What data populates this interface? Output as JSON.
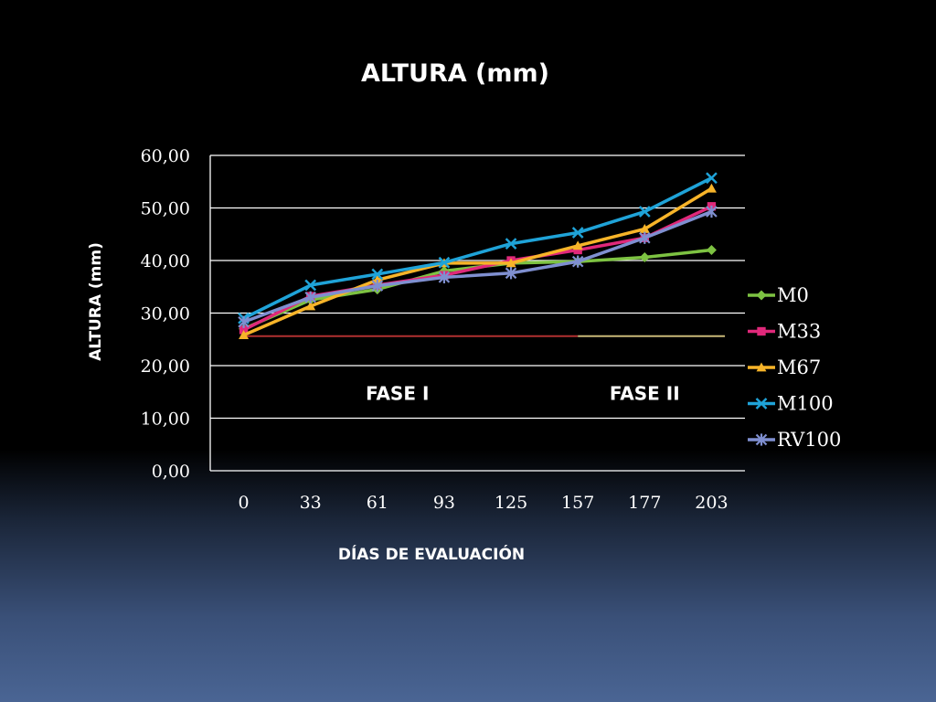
{
  "chart_data": {
    "type": "line",
    "title": "ALTURA (mm)",
    "xlabel": "DÍAS DE EVALUACIÓN",
    "ylabel": "ALTURA (mm)",
    "categories": [
      "0",
      "33",
      "61",
      "93",
      "125",
      "157",
      "177",
      "203"
    ],
    "ylim": [
      0,
      60
    ],
    "yticks": [
      "0,00",
      "10,00",
      "20,00",
      "30,00",
      "40,00",
      "50,00",
      "60,00"
    ],
    "grid": true,
    "legend": "right",
    "series": [
      {
        "name": "M0",
        "color": "#7dc242",
        "marker": "diamond",
        "values": [
          27.0,
          32.5,
          34.5,
          38.0,
          39.5,
          39.8,
          40.6,
          42.0
        ]
      },
      {
        "name": "M33",
        "color": "#e0287a",
        "marker": "square",
        "values": [
          26.8,
          33.2,
          35.3,
          37.2,
          40.0,
          42.0,
          44.3,
          50.3
        ]
      },
      {
        "name": "M67",
        "color": "#f7b429",
        "marker": "triangle",
        "values": [
          25.8,
          31.3,
          36.3,
          39.5,
          39.5,
          42.8,
          46.0,
          53.7
        ]
      },
      {
        "name": "M100",
        "color": "#1fa3d8",
        "marker": "x",
        "values": [
          29.0,
          35.3,
          37.4,
          39.6,
          43.2,
          45.3,
          49.3,
          55.7
        ]
      },
      {
        "name": "RV100",
        "color": "#7f8fd0",
        "marker": "star",
        "values": [
          28.3,
          33.0,
          35.2,
          36.8,
          37.6,
          39.8,
          44.3,
          49.3
        ]
      }
    ],
    "phase_lines": [
      {
        "y": 25.6,
        "from_index": 0,
        "to_index": 5,
        "color": "#b03030"
      },
      {
        "y": 25.6,
        "from_index": 5,
        "to_index": 7.2,
        "color": "#c8b878"
      }
    ],
    "annotations": [
      {
        "text": "FASE I",
        "x_index": 2.3,
        "y": 14.7
      },
      {
        "text": "FASE II",
        "x_index": 6.0,
        "y": 14.7
      }
    ]
  }
}
